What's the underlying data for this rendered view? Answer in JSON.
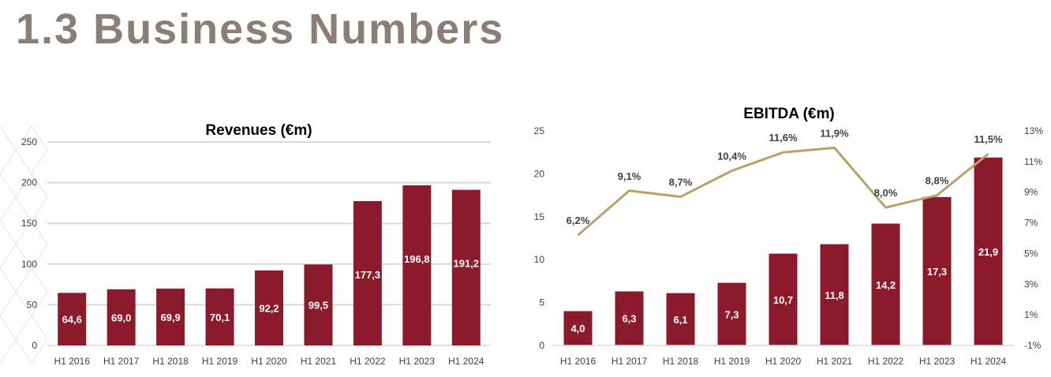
{
  "page": {
    "title": "1.3 Business Numbers"
  },
  "colors": {
    "bar": "#8b1a2b",
    "line": "#b5a36b",
    "title": "#8b1a2b",
    "heading": "#8a7e76",
    "grid": "#d9d9d9",
    "text": "#404040"
  },
  "chart_data": [
    {
      "type": "bar",
      "title": "Revenues (€m)",
      "categories": [
        "H1 2016",
        "H1 2017",
        "H1 2018",
        "H1 2019",
        "H1 2020",
        "H1 2021",
        "H1 2022",
        "H1 2023",
        "H1 2024"
      ],
      "values": [
        64.6,
        69.0,
        69.9,
        70.1,
        92.2,
        99.5,
        177.3,
        196.8,
        191.2
      ],
      "value_labels": [
        "64,6",
        "69,0",
        "69,9",
        "70,1",
        "92,2",
        "99,5",
        "177,3",
        "196,8",
        "191,2"
      ],
      "ylim": [
        0,
        250
      ],
      "yticks": [
        "0",
        "50",
        "100",
        "150",
        "200",
        "250"
      ],
      "grid": true,
      "legend": "none"
    },
    {
      "type": "bar",
      "title": "EBITDA (€m)",
      "categories": [
        "H1 2016",
        "H1 2017",
        "H1 2018",
        "H1 2019",
        "H1 2020",
        "H1 2021",
        "H1 2022",
        "H1 2023",
        "H1 2024"
      ],
      "values": [
        4.0,
        6.3,
        6.1,
        7.3,
        10.7,
        11.8,
        14.2,
        17.3,
        21.9
      ],
      "value_labels": [
        "4,0",
        "6,3",
        "6,1",
        "7,3",
        "10,7",
        "11,8",
        "14,2",
        "17,3",
        "21,9"
      ],
      "ylim": [
        0,
        25
      ],
      "yticks": [
        "0",
        "5",
        "10",
        "15",
        "20",
        "25"
      ],
      "secondary": {
        "type": "line",
        "values": [
          6.2,
          9.1,
          8.7,
          10.4,
          11.6,
          11.9,
          8.0,
          8.8,
          11.5
        ],
        "value_labels": [
          "6,2%",
          "9,1%",
          "8,7%",
          "10,4%",
          "11,6%",
          "11,9%",
          "8,0%",
          "8,8%",
          "11,5%"
        ],
        "ylim": [
          -1,
          13
        ],
        "yticks": [
          "-1%",
          "1%",
          "3%",
          "5%",
          "7%",
          "9%",
          "11%",
          "13%"
        ]
      },
      "grid": false,
      "legend": "none"
    }
  ]
}
